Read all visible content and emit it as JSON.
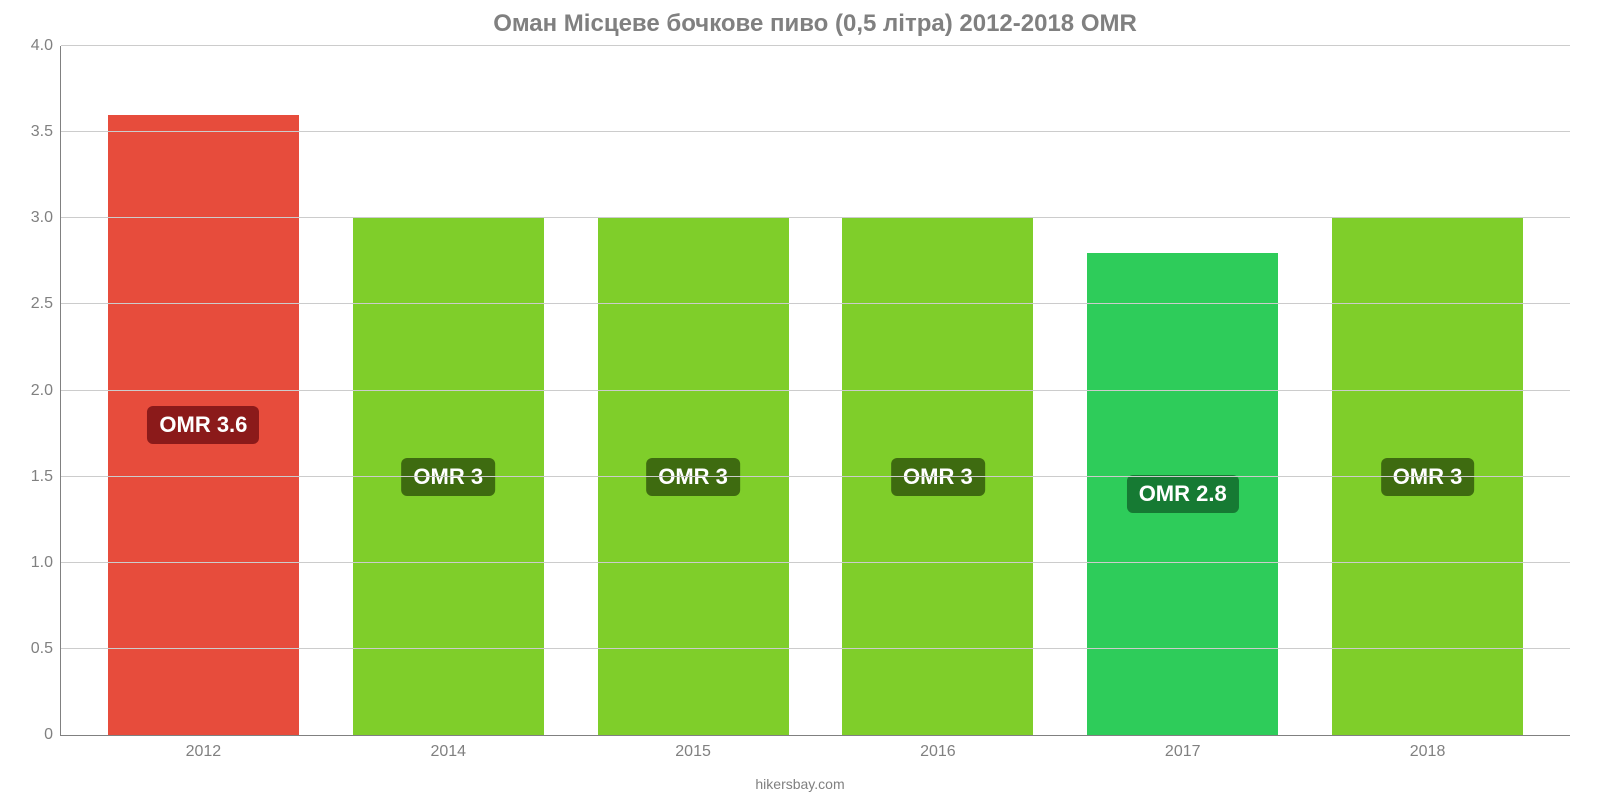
{
  "chart": {
    "type": "bar",
    "title": "Оман Місцеве бочкове пиво (0,5 літра) 2012-2018 OMR",
    "title_fontsize": 24,
    "title_color": "#808080",
    "source": "hikersbay.com",
    "background_color": "#ffffff",
    "grid_color": "#cccccc",
    "axis_color": "#808080",
    "label_color": "#808080",
    "label_fontsize": 16,
    "ylim": [
      0,
      4.0
    ],
    "yticks": [
      0,
      0.5,
      1.0,
      1.5,
      2.0,
      2.5,
      3.0,
      3.5,
      4.0
    ],
    "ytick_labels": [
      "0",
      "0.5",
      "1.0",
      "1.5",
      "2.0",
      "2.5",
      "3.0",
      "3.5",
      "4.0"
    ],
    "bar_width_pct": 78,
    "bars": [
      {
        "category": "2012",
        "value": 3.6,
        "label": "OMR 3.6",
        "color": "#e74c3c",
        "badge_bg": "#8b1a1a"
      },
      {
        "category": "2014",
        "value": 3.0,
        "label": "OMR 3",
        "color": "#7fce2a",
        "badge_bg": "#3e6b10"
      },
      {
        "category": "2015",
        "value": 3.0,
        "label": "OMR 3",
        "color": "#7fce2a",
        "badge_bg": "#3e6b10"
      },
      {
        "category": "2016",
        "value": 3.0,
        "label": "OMR 3",
        "color": "#7fce2a",
        "badge_bg": "#3e6b10"
      },
      {
        "category": "2017",
        "value": 2.8,
        "label": "OMR 2.8",
        "color": "#2ecc5a",
        "badge_bg": "#167a33"
      },
      {
        "category": "2018",
        "value": 3.0,
        "label": "OMR 3",
        "color": "#7fce2a",
        "badge_bg": "#3e6b10"
      }
    ]
  }
}
